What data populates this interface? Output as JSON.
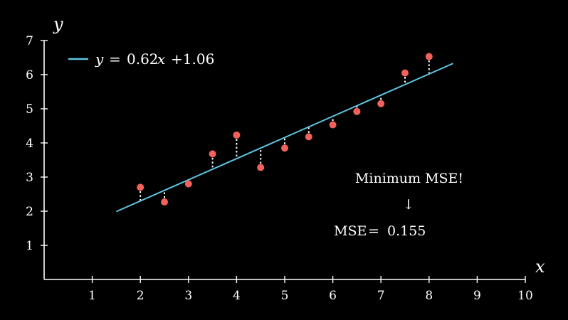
{
  "chart_data": {
    "type": "scatter",
    "xlabel": "x",
    "ylabel": "y",
    "xlim": [
      0,
      10
    ],
    "ylim": [
      0,
      7
    ],
    "x_ticks": [
      1,
      2,
      3,
      4,
      5,
      6,
      7,
      8,
      9,
      10
    ],
    "y_ticks": [
      1,
      2,
      3,
      4,
      5,
      6,
      7
    ],
    "grid": false,
    "legend_position": "top-left",
    "colors": {
      "background": "#000000",
      "axis": "#ffffff",
      "line": "#5ec4e0",
      "points": "#f0625a",
      "residuals": "#ffffff"
    },
    "points": [
      {
        "x": 2.0,
        "y": 2.7
      },
      {
        "x": 2.5,
        "y": 2.27
      },
      {
        "x": 3.0,
        "y": 2.8
      },
      {
        "x": 3.5,
        "y": 3.68
      },
      {
        "x": 4.0,
        "y": 4.23
      },
      {
        "x": 4.5,
        "y": 3.28
      },
      {
        "x": 5.0,
        "y": 3.85
      },
      {
        "x": 5.5,
        "y": 4.18
      },
      {
        "x": 6.0,
        "y": 4.53
      },
      {
        "x": 6.5,
        "y": 4.92
      },
      {
        "x": 7.0,
        "y": 5.15
      },
      {
        "x": 7.5,
        "y": 6.05
      },
      {
        "x": 8.0,
        "y": 6.53
      }
    ],
    "fit_line": {
      "slope": 0.62,
      "intercept": 1.06,
      "x_start": 1.5,
      "x_end": 8.5
    },
    "legend": {
      "lhs": "y",
      "eq": "=",
      "slope": "0.62",
      "var": "x",
      "intercept": "+1.06"
    },
    "annotations": {
      "headline": "Minimum MSE!",
      "arrow": "↓",
      "mse_label": "MSE",
      "mse_eq": "=",
      "mse_value": "0.155"
    }
  }
}
